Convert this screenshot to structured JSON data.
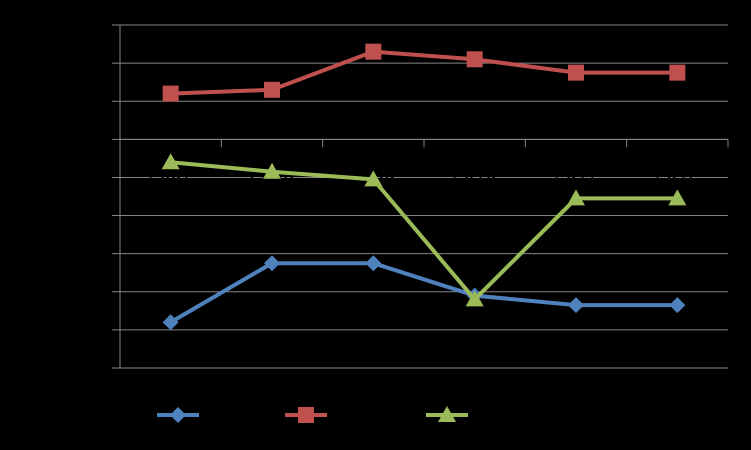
{
  "chart_data": {
    "type": "line",
    "title": "",
    "xlabel": "",
    "ylabel": "",
    "background": "#000000",
    "gridlines": true,
    "grid_color": "#868686",
    "legend_position": "bottom",
    "categories": [
      "2007",
      "2008",
      "2009",
      "2010",
      "2011",
      "2012"
    ],
    "series": [
      {
        "color": "#4F81BD",
        "marker": "diamond",
        "values": [
          1.2,
          2.75,
          2.75,
          1.9,
          1.65,
          1.65
        ]
      },
      {
        "color": "#C0504D",
        "marker": "square",
        "values": [
          7.2,
          7.3,
          8.3,
          8.1,
          7.75,
          7.75
        ]
      },
      {
        "color": "#9BBB59",
        "marker": "triangle",
        "values": [
          5.4,
          5.15,
          4.95,
          1.8,
          4.45,
          4.45
        ]
      }
    ],
    "ylim": [
      0,
      9
    ]
  }
}
